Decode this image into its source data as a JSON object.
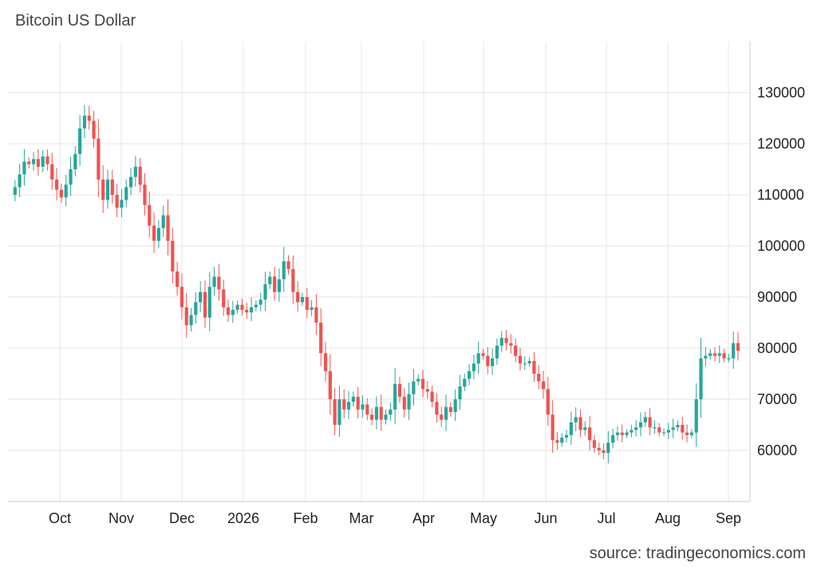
{
  "chart_data": {
    "type": "candlestick",
    "title": "Bitcoin US Dollar",
    "source": "source: tradingeconomics.com",
    "xlabel": "",
    "ylabel": "",
    "ylim": [
      50000,
      140000
    ],
    "y_ticks": [
      60000,
      70000,
      80000,
      90000,
      100000,
      110000,
      120000,
      130000
    ],
    "y_tick_labels": [
      "60000",
      "70000",
      "80000",
      "90000",
      "100000",
      "110000",
      "120000",
      "130000"
    ],
    "x_tick_labels": [
      "Oct",
      "Nov",
      "Dec",
      "2026",
      "Feb",
      "Mar",
      "Apr",
      "May",
      "Jun",
      "Jul",
      "Aug",
      "Sep"
    ],
    "grid": true,
    "y_axis_position": "right",
    "colors": {
      "up": "#26a69a",
      "down": "#ef5350",
      "grid": "#e6e6e6",
      "axis": "#cccccc"
    },
    "series": [
      {
        "values": [
          110000,
          111500,
          114000,
          116500,
          116000,
          117000,
          115500,
          117500,
          116000,
          113000,
          111000,
          109500,
          112000,
          115000,
          118000,
          123000,
          125500,
          124500,
          121000,
          113000,
          109000,
          113000,
          110000,
          107500,
          109000,
          111500,
          113500,
          115500,
          112000,
          108000,
          104000,
          101000,
          103500,
          106000,
          101000,
          95000,
          92000,
          88000,
          84500,
          86500,
          89000,
          91000,
          86000,
          92000,
          94000,
          91500,
          88000,
          86500,
          87500,
          88500,
          87500,
          87000,
          88000,
          88500,
          89500,
          92500,
          94000,
          91000,
          93500,
          97000,
          95500,
          91000,
          89000,
          90000,
          87500,
          88000,
          85000,
          79000,
          75500,
          70000,
          65000,
          70000,
          68000,
          69500,
          70500,
          68000,
          69000,
          67000,
          66000,
          68500,
          66000,
          67000,
          68000,
          73000,
          70500,
          68000,
          71000,
          73500,
          74000,
          72000,
          71500,
          69500,
          67000,
          66000,
          68500,
          67500,
          70000,
          72500,
          74000,
          75500,
          77000,
          79000,
          78500,
          76500,
          78000,
          80500,
          82000,
          81000,
          80500,
          78500,
          77000,
          77000,
          77500,
          75000,
          73500,
          72000,
          67000,
          62000,
          61500,
          62500,
          63000,
          65500,
          66500,
          64000,
          64500,
          62000,
          60500,
          60000,
          59500,
          61500,
          63000,
          63500,
          63000,
          63500,
          64000,
          64500,
          65500,
          66500,
          64500,
          64500,
          63500,
          63500,
          64000,
          64500,
          65000,
          63500,
          63000,
          63500,
          70000,
          78000,
          78500,
          79000,
          78500,
          79000,
          78000,
          78000,
          81000,
          79500
        ]
      }
    ]
  }
}
